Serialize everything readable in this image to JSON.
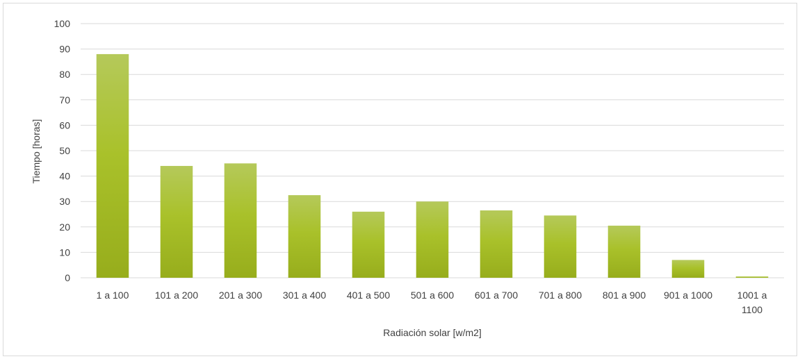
{
  "chart_data": {
    "type": "bar",
    "title": "",
    "xlabel": "Radiación solar [w/m2]",
    "ylabel": "Tiempo [horas]",
    "ylim": [
      0,
      100
    ],
    "yticks": [
      "0",
      "10",
      "20",
      "30",
      "40",
      "50",
      "60",
      "70",
      "80",
      "90",
      "100"
    ],
    "categories": [
      [
        "1 a 100"
      ],
      [
        "101 a 200"
      ],
      [
        "201 a 300"
      ],
      [
        "301 a 400"
      ],
      [
        "401 a 500"
      ],
      [
        "501 a 600"
      ],
      [
        "601 a 700"
      ],
      [
        "701 a 800"
      ],
      [
        "801 a 900"
      ],
      [
        "901 a 1000"
      ],
      [
        "1001 a",
        "1100"
      ]
    ],
    "values": [
      88,
      44,
      45,
      32.5,
      26,
      30,
      26.5,
      24.5,
      20.5,
      7,
      0.5
    ],
    "grid": true,
    "legend": "none",
    "colors": {
      "bar_top": "#b5c95a",
      "bar_mid": "#a9c12a",
      "bar_bottom": "#97ad1c",
      "grid": "#d9d9d9"
    }
  }
}
